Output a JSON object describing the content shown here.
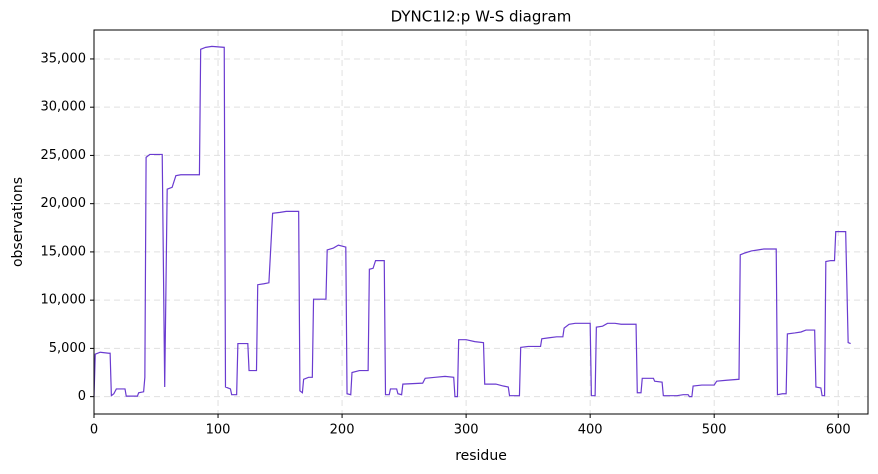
{
  "chart_data": {
    "type": "line",
    "title": "DYNC1I2:p W-S diagram",
    "xlabel": "residue",
    "ylabel": "observations",
    "color": "#6a3bd0",
    "grid": true,
    "xlim": [
      0,
      624
    ],
    "ylim": [
      -1800,
      38000
    ],
    "xticks": [
      0,
      100,
      200,
      300,
      400,
      500,
      600
    ],
    "yticks": [
      0,
      {
        "value": 5000,
        "label": "5,000"
      },
      {
        "value": 10000,
        "label": "10,000"
      },
      {
        "value": 15000,
        "label": "15,000"
      },
      {
        "value": 20000,
        "label": "20,000"
      },
      {
        "value": 25000,
        "label": "25,000"
      },
      {
        "value": 30000,
        "label": "30,000"
      },
      {
        "value": 35000,
        "label": "35,000"
      }
    ],
    "x": [
      0,
      1,
      5,
      12,
      13,
      14,
      16,
      18,
      25,
      26,
      35,
      36,
      40,
      41,
      42,
      45,
      55,
      57,
      59,
      63,
      66,
      70,
      85,
      86,
      90,
      95,
      105,
      106,
      110,
      111,
      115,
      116,
      124,
      125,
      131,
      132,
      137,
      141,
      144,
      150,
      155,
      165,
      166,
      168,
      169,
      173,
      176,
      177,
      187,
      188,
      193,
      197,
      203,
      204,
      207,
      208,
      214,
      221,
      222,
      225,
      227,
      234,
      235,
      238,
      239,
      244,
      245,
      248,
      249,
      265,
      267,
      275,
      283,
      290,
      291,
      293,
      294,
      300,
      307,
      314,
      315,
      324,
      330,
      334,
      335,
      343,
      344,
      350,
      360,
      361,
      367,
      373,
      378,
      379,
      383,
      388,
      400,
      401,
      404,
      405,
      410,
      414,
      420,
      425,
      437,
      438,
      441,
      442,
      451,
      452,
      458,
      459,
      470,
      475,
      479,
      480,
      482,
      483,
      490,
      500,
      502,
      510,
      520,
      521,
      525,
      530,
      535,
      540,
      550,
      551,
      555,
      558,
      559,
      565,
      570,
      574,
      581,
      582,
      586,
      587,
      589,
      590,
      594,
      597,
      598,
      606,
      608,
      610
    ],
    "values": [
      0,
      4400,
      4600,
      4500,
      4500,
      100,
      300,
      800,
      800,
      50,
      50,
      400,
      500,
      2000,
      24800,
      25100,
      25100,
      1000,
      21500,
      21700,
      22900,
      23000,
      23000,
      36000,
      36200,
      36300,
      36200,
      1000,
      800,
      200,
      200,
      5500,
      5500,
      2700,
      2700,
      11600,
      11700,
      11800,
      19000,
      19100,
      19200,
      19200,
      600,
      400,
      1800,
      2000,
      2000,
      10100,
      10100,
      15200,
      15400,
      15700,
      15500,
      300,
      200,
      2500,
      2700,
      2700,
      13200,
      13300,
      14100,
      14100,
      200,
      200,
      800,
      800,
      300,
      200,
      1300,
      1400,
      1900,
      2000,
      2100,
      2000,
      0,
      0,
      5900,
      5900,
      5700,
      5600,
      1300,
      1300,
      1100,
      1000,
      100,
      100,
      5100,
      5200,
      5200,
      6000,
      6100,
      6200,
      6200,
      7100,
      7500,
      7600,
      7600,
      100,
      100,
      7200,
      7300,
      7600,
      7600,
      7500,
      7500,
      400,
      400,
      1900,
      1900,
      1600,
      1500,
      100,
      100,
      200,
      200,
      0,
      0,
      1100,
      1200,
      1200,
      1600,
      1700,
      1800,
      14700,
      14900,
      15100,
      15200,
      15300,
      15300,
      200,
      300,
      300,
      6500,
      6600,
      6700,
      6900,
      6900,
      1000,
      900,
      100,
      100,
      14000,
      14100,
      14100,
      17100,
      17100,
      5600,
      5500
    ]
  }
}
